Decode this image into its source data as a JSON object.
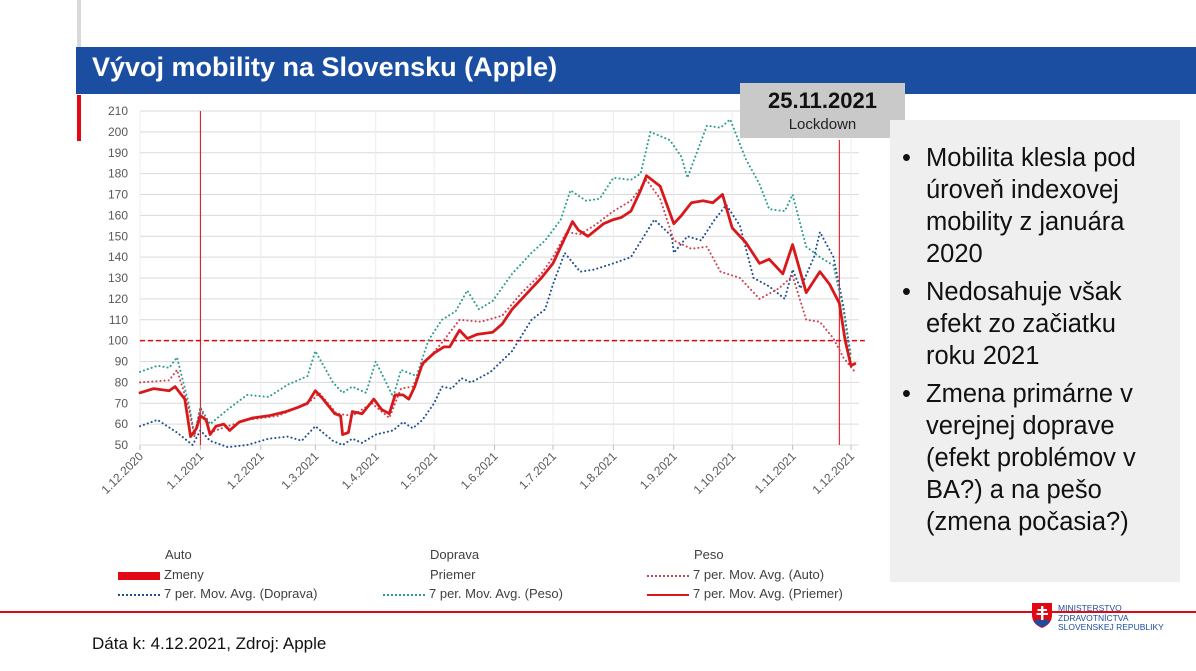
{
  "title": "Vývoj mobility na Slovensku (Apple)",
  "annotation": {
    "date": "25.11.2021",
    "label": "Lockdown"
  },
  "notes": [
    "Mobilita klesla pod úroveň indexovej mobility z januára 2020",
    "Nedosahuje však efekt zo začiatku roku 2021",
    "Zmena primárne v verejnej doprave (efekt problémov v BA?) a na pešo (zmena počasia?)"
  ],
  "footer": "Dáta k: 4.12.2021, Zdroj: Apple",
  "logo": {
    "line1": "MINISTERSTVO",
    "line2": "ZDRAVOTNÍCTVA",
    "line3": "SLOVENSKEJ REPUBLIKY"
  },
  "colors": {
    "title_bar": "#1b4ea0",
    "accent_red": "#e30613",
    "priemer": "#d7191c",
    "auto": "#d04050",
    "doprava": "#1f4e8c",
    "peso": "#2a9d8f"
  },
  "legend": {
    "auto": "Auto",
    "zmeny": "Zmeny",
    "doprava_avg": "7 per. Mov. Avg. (Doprava)",
    "doprava": "Doprava",
    "priemer": "Priemer",
    "peso_avg": "7 per. Mov. Avg. (Peso)",
    "peso": "Peso",
    "auto_avg": "7 per. Mov. Avg. (Auto)",
    "priemer_avg": "7 per. Mov. Avg. (Priemer)"
  },
  "chart_data": {
    "type": "line",
    "ylim": [
      50,
      210
    ],
    "yticks": [
      50,
      60,
      70,
      80,
      90,
      100,
      110,
      120,
      130,
      140,
      150,
      160,
      170,
      180,
      190,
      200,
      210
    ],
    "xlim": [
      "2020-12-01",
      "2021-12-05"
    ],
    "xticks": [
      {
        "date": "2020-12-01",
        "label": "1.12.2020"
      },
      {
        "date": "2021-01-01",
        "label": "1.1.2021"
      },
      {
        "date": "2021-02-01",
        "label": "1.2.2021"
      },
      {
        "date": "2021-03-01",
        "label": "1.3.2021"
      },
      {
        "date": "2021-04-01",
        "label": "1.4.2021"
      },
      {
        "date": "2021-05-01",
        "label": "1.5.2021"
      },
      {
        "date": "2021-06-01",
        "label": "1.6.2021"
      },
      {
        "date": "2021-07-01",
        "label": "1.7.2021"
      },
      {
        "date": "2021-08-01",
        "label": "1.8.2021"
      },
      {
        "date": "2021-09-01",
        "label": "1.9.2021"
      },
      {
        "date": "2021-10-01",
        "label": "1.10.2021"
      },
      {
        "date": "2021-11-01",
        "label": "1.11.2021"
      },
      {
        "date": "2021-12-01",
        "label": "1.12.2021"
      }
    ],
    "grid": true,
    "reference_line": {
      "y": 100,
      "style": "dashed"
    },
    "vertical_markers": [
      "2021-01-01",
      "2021-11-25"
    ],
    "series": [
      {
        "name": "7 per. Mov. Avg. (Doprava)",
        "color": "#1f4e8c",
        "style": "dotted",
        "points": [
          [
            "2020-12-01",
            59
          ],
          [
            "2020-12-10",
            62
          ],
          [
            "2020-12-20",
            56
          ],
          [
            "2020-12-28",
            50
          ],
          [
            "2021-01-01",
            57
          ],
          [
            "2021-01-06",
            52
          ],
          [
            "2021-01-15",
            49
          ],
          [
            "2021-01-25",
            50
          ],
          [
            "2021-02-05",
            53
          ],
          [
            "2021-02-15",
            54
          ],
          [
            "2021-02-22",
            52
          ],
          [
            "2021-03-01",
            59
          ],
          [
            "2021-03-10",
            52
          ],
          [
            "2021-03-15",
            50
          ],
          [
            "2021-03-20",
            53
          ],
          [
            "2021-03-25",
            51
          ],
          [
            "2021-04-01",
            55
          ],
          [
            "2021-04-10",
            57
          ],
          [
            "2021-04-15",
            61
          ],
          [
            "2021-04-20",
            58
          ],
          [
            "2021-04-25",
            62
          ],
          [
            "2021-05-01",
            70
          ],
          [
            "2021-05-05",
            78
          ],
          [
            "2021-05-10",
            77
          ],
          [
            "2021-05-15",
            82
          ],
          [
            "2021-05-20",
            80
          ],
          [
            "2021-05-30",
            85
          ],
          [
            "2021-06-10",
            95
          ],
          [
            "2021-06-20",
            110
          ],
          [
            "2021-06-27",
            115
          ],
          [
            "2021-07-01",
            127
          ],
          [
            "2021-07-07",
            142
          ],
          [
            "2021-07-15",
            133
          ],
          [
            "2021-07-22",
            134
          ],
          [
            "2021-08-01",
            137
          ],
          [
            "2021-08-10",
            140
          ],
          [
            "2021-08-18",
            152
          ],
          [
            "2021-08-22",
            158
          ],
          [
            "2021-08-31",
            150
          ],
          [
            "2021-09-01",
            142
          ],
          [
            "2021-09-08",
            150
          ],
          [
            "2021-09-15",
            148
          ],
          [
            "2021-09-22",
            158
          ],
          [
            "2021-09-28",
            165
          ],
          [
            "2021-10-05",
            155
          ],
          [
            "2021-10-12",
            130
          ],
          [
            "2021-10-20",
            126
          ],
          [
            "2021-10-28",
            120
          ],
          [
            "2021-11-01",
            134
          ],
          [
            "2021-11-05",
            125
          ],
          [
            "2021-11-12",
            140
          ],
          [
            "2021-11-15",
            152
          ],
          [
            "2021-11-22",
            140
          ],
          [
            "2021-11-27",
            117
          ],
          [
            "2021-12-01",
            92
          ]
        ]
      },
      {
        "name": "7 per. Mov. Avg. (Peso)",
        "color": "#2a9d8f",
        "style": "dotted",
        "points": [
          [
            "2020-12-01",
            85
          ],
          [
            "2020-12-10",
            88
          ],
          [
            "2020-12-16",
            87
          ],
          [
            "2020-12-20",
            92
          ],
          [
            "2020-12-26",
            70
          ],
          [
            "2020-12-29",
            55
          ],
          [
            "2021-01-01",
            68
          ],
          [
            "2021-01-06",
            60
          ],
          [
            "2021-01-15",
            67
          ],
          [
            "2021-01-25",
            74
          ],
          [
            "2021-02-05",
            73
          ],
          [
            "2021-02-15",
            79
          ],
          [
            "2021-02-25",
            83
          ],
          [
            "2021-03-01",
            95
          ],
          [
            "2021-03-10",
            80
          ],
          [
            "2021-03-15",
            75
          ],
          [
            "2021-03-20",
            78
          ],
          [
            "2021-03-27",
            75
          ],
          [
            "2021-04-01",
            90
          ],
          [
            "2021-04-10",
            73
          ],
          [
            "2021-04-14",
            86
          ],
          [
            "2021-04-22",
            83
          ],
          [
            "2021-04-28",
            100
          ],
          [
            "2021-05-05",
            110
          ],
          [
            "2021-05-12",
            114
          ],
          [
            "2021-05-18",
            124
          ],
          [
            "2021-05-24",
            115
          ],
          [
            "2021-05-31",
            119
          ],
          [
            "2021-06-10",
            132
          ],
          [
            "2021-06-20",
            142
          ],
          [
            "2021-06-27",
            148
          ],
          [
            "2021-07-05",
            158
          ],
          [
            "2021-07-10",
            172
          ],
          [
            "2021-07-18",
            167
          ],
          [
            "2021-07-25",
            168
          ],
          [
            "2021-08-01",
            178
          ],
          [
            "2021-08-10",
            177
          ],
          [
            "2021-08-15",
            180
          ],
          [
            "2021-08-20",
            200
          ],
          [
            "2021-08-30",
            196
          ],
          [
            "2021-09-05",
            188
          ],
          [
            "2021-09-08",
            178
          ],
          [
            "2021-09-18",
            203
          ],
          [
            "2021-09-25",
            202
          ],
          [
            "2021-09-30",
            206
          ],
          [
            "2021-10-08",
            187
          ],
          [
            "2021-10-15",
            175
          ],
          [
            "2021-10-20",
            163
          ],
          [
            "2021-10-28",
            162
          ],
          [
            "2021-11-01",
            170
          ],
          [
            "2021-11-08",
            145
          ],
          [
            "2021-11-15",
            140
          ],
          [
            "2021-11-22",
            136
          ],
          [
            "2021-11-27",
            115
          ],
          [
            "2021-12-01",
            90
          ]
        ]
      },
      {
        "name": "7 per. Mov. Avg. (Auto)",
        "color": "#d04050",
        "style": "dotted",
        "points": [
          [
            "2020-12-01",
            80
          ],
          [
            "2020-12-16",
            81
          ],
          [
            "2020-12-20",
            86
          ],
          [
            "2020-12-26",
            68
          ],
          [
            "2020-12-29",
            54
          ],
          [
            "2021-01-01",
            68
          ],
          [
            "2021-01-06",
            56
          ],
          [
            "2021-01-15",
            59
          ],
          [
            "2021-01-25",
            62
          ],
          [
            "2021-02-10",
            64
          ],
          [
            "2021-02-20",
            68
          ],
          [
            "2021-02-28",
            72
          ],
          [
            "2021-03-03",
            75
          ],
          [
            "2021-03-12",
            65
          ],
          [
            "2021-03-20",
            64
          ],
          [
            "2021-03-30",
            70
          ],
          [
            "2021-04-08",
            63
          ],
          [
            "2021-04-14",
            77
          ],
          [
            "2021-04-20",
            78
          ],
          [
            "2021-04-25",
            88
          ],
          [
            "2021-05-05",
            99
          ],
          [
            "2021-05-14",
            110
          ],
          [
            "2021-05-25",
            109
          ],
          [
            "2021-06-05",
            112
          ],
          [
            "2021-06-15",
            123
          ],
          [
            "2021-06-25",
            132
          ],
          [
            "2021-07-01",
            140
          ],
          [
            "2021-07-08",
            152
          ],
          [
            "2021-07-15",
            151
          ],
          [
            "2021-07-22",
            155
          ],
          [
            "2021-08-01",
            162
          ],
          [
            "2021-08-10",
            167
          ],
          [
            "2021-08-18",
            177
          ],
          [
            "2021-08-25",
            168
          ],
          [
            "2021-09-01",
            148
          ],
          [
            "2021-09-10",
            144
          ],
          [
            "2021-09-18",
            145
          ],
          [
            "2021-09-25",
            133
          ],
          [
            "2021-10-05",
            130
          ],
          [
            "2021-10-15",
            120
          ],
          [
            "2021-10-25",
            125
          ],
          [
            "2021-11-01",
            131
          ],
          [
            "2021-11-08",
            110
          ],
          [
            "2021-11-15",
            109
          ],
          [
            "2021-11-22",
            101
          ],
          [
            "2021-11-27",
            92
          ],
          [
            "2021-12-03",
            85
          ]
        ]
      },
      {
        "name": "7 per. Mov. Avg. (Priemer)",
        "color": "#d7191c",
        "style": "solid",
        "points": [
          [
            "2020-12-01",
            75
          ],
          [
            "2020-12-08",
            77
          ],
          [
            "2020-12-16",
            76
          ],
          [
            "2020-12-19",
            78
          ],
          [
            "2020-12-24",
            72
          ],
          [
            "2020-12-27",
            54
          ],
          [
            "2020-12-30",
            58
          ],
          [
            "2021-01-01",
            64
          ],
          [
            "2021-01-04",
            62
          ],
          [
            "2021-01-06",
            55
          ],
          [
            "2021-01-09",
            59
          ],
          [
            "2021-01-13",
            60
          ],
          [
            "2021-01-16",
            57
          ],
          [
            "2021-01-21",
            61
          ],
          [
            "2021-01-28",
            63
          ],
          [
            "2021-02-05",
            64
          ],
          [
            "2021-02-14",
            66
          ],
          [
            "2021-02-20",
            68
          ],
          [
            "2021-02-25",
            70
          ],
          [
            "2021-03-01",
            76
          ],
          [
            "2021-03-05",
            72
          ],
          [
            "2021-03-11",
            65
          ],
          [
            "2021-03-14",
            64
          ],
          [
            "2021-03-15",
            55
          ],
          [
            "2021-03-18",
            56
          ],
          [
            "2021-03-20",
            66
          ],
          [
            "2021-03-25",
            65
          ],
          [
            "2021-03-31",
            72
          ],
          [
            "2021-04-04",
            67
          ],
          [
            "2021-04-08",
            65
          ],
          [
            "2021-04-11",
            74
          ],
          [
            "2021-04-15",
            74
          ],
          [
            "2021-04-18",
            72
          ],
          [
            "2021-04-21",
            78
          ],
          [
            "2021-04-25",
            89
          ],
          [
            "2021-05-01",
            94
          ],
          [
            "2021-05-06",
            97
          ],
          [
            "2021-05-09",
            97
          ],
          [
            "2021-05-14",
            105
          ],
          [
            "2021-05-18",
            101
          ],
          [
            "2021-05-23",
            103
          ],
          [
            "2021-05-31",
            104
          ],
          [
            "2021-06-05",
            108
          ],
          [
            "2021-06-10",
            115
          ],
          [
            "2021-06-15",
            120
          ],
          [
            "2021-06-20",
            125
          ],
          [
            "2021-06-25",
            130
          ],
          [
            "2021-07-01",
            137
          ],
          [
            "2021-07-05",
            145
          ],
          [
            "2021-07-07",
            149
          ],
          [
            "2021-07-11",
            157
          ],
          [
            "2021-07-14",
            153
          ],
          [
            "2021-07-19",
            150
          ],
          [
            "2021-07-23",
            153
          ],
          [
            "2021-07-27",
            156
          ],
          [
            "2021-08-01",
            158
          ],
          [
            "2021-08-05",
            159
          ],
          [
            "2021-08-10",
            162
          ],
          [
            "2021-08-15",
            172
          ],
          [
            "2021-08-18",
            179
          ],
          [
            "2021-08-25",
            174
          ],
          [
            "2021-09-01",
            156
          ],
          [
            "2021-09-05",
            160
          ],
          [
            "2021-09-10",
            166
          ],
          [
            "2021-09-16",
            167
          ],
          [
            "2021-09-21",
            166
          ],
          [
            "2021-09-26",
            170
          ],
          [
            "2021-10-01",
            154
          ],
          [
            "2021-10-08",
            147
          ],
          [
            "2021-10-15",
            137
          ],
          [
            "2021-10-20",
            139
          ],
          [
            "2021-10-27",
            132
          ],
          [
            "2021-11-01",
            146
          ],
          [
            "2021-11-08",
            123
          ],
          [
            "2021-11-15",
            133
          ],
          [
            "2021-11-20",
            127
          ],
          [
            "2021-11-25",
            118
          ],
          [
            "2021-11-28",
            100
          ],
          [
            "2021-12-01",
            88
          ],
          [
            "2021-12-03",
            89
          ]
        ]
      }
    ]
  }
}
